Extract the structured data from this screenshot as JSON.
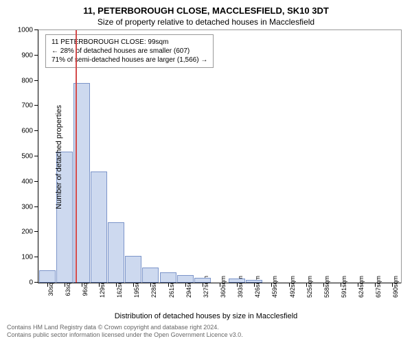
{
  "title_line1": "11, PETERBOROUGH CLOSE, MACCLESFIELD, SK10 3DT",
  "title_line2": "Size of property relative to detached houses in Macclesfield",
  "yaxis": {
    "label": "Number of detached properties",
    "min": 0,
    "max": 1000,
    "ticks": [
      0,
      100,
      200,
      300,
      400,
      500,
      600,
      700,
      800,
      900,
      1000
    ]
  },
  "xaxis": {
    "label": "Distribution of detached houses by size in Macclesfield",
    "categories": [
      "30sqm",
      "63sqm",
      "96sqm",
      "129sqm",
      "162sqm",
      "195sqm",
      "228sqm",
      "261sqm",
      "294sqm",
      "327sqm",
      "360sqm",
      "393sqm",
      "426sqm",
      "459sqm",
      "492sqm",
      "525sqm",
      "558sqm",
      "591sqm",
      "624sqm",
      "657sqm",
      "690sqm"
    ]
  },
  "bars": {
    "values": [
      50,
      520,
      790,
      440,
      240,
      105,
      60,
      40,
      30,
      18,
      0,
      15,
      10,
      0,
      0,
      0,
      0,
      0,
      0,
      0,
      0
    ],
    "fill_color": "#cdd9ef",
    "border_color": "#7b94c9",
    "width_fraction": 0.95
  },
  "marker": {
    "position_category_index": 2,
    "position_offset": 0.15,
    "color": "#d44a4a"
  },
  "info_box": {
    "line1": "11 PETERBOROUGH CLOSE: 99sqm",
    "line2": "← 28% of detached houses are smaller (607)",
    "line3": "71% of semi-detached houses are larger (1,566) →"
  },
  "footer": {
    "line1": "Contains HM Land Registry data © Crown copyright and database right 2024.",
    "line2": "Contains public sector information licensed under the Open Government Licence v3.0."
  },
  "chart_style": {
    "background_color": "#ffffff",
    "axis_color": "#000000",
    "border_color": "#999999"
  }
}
